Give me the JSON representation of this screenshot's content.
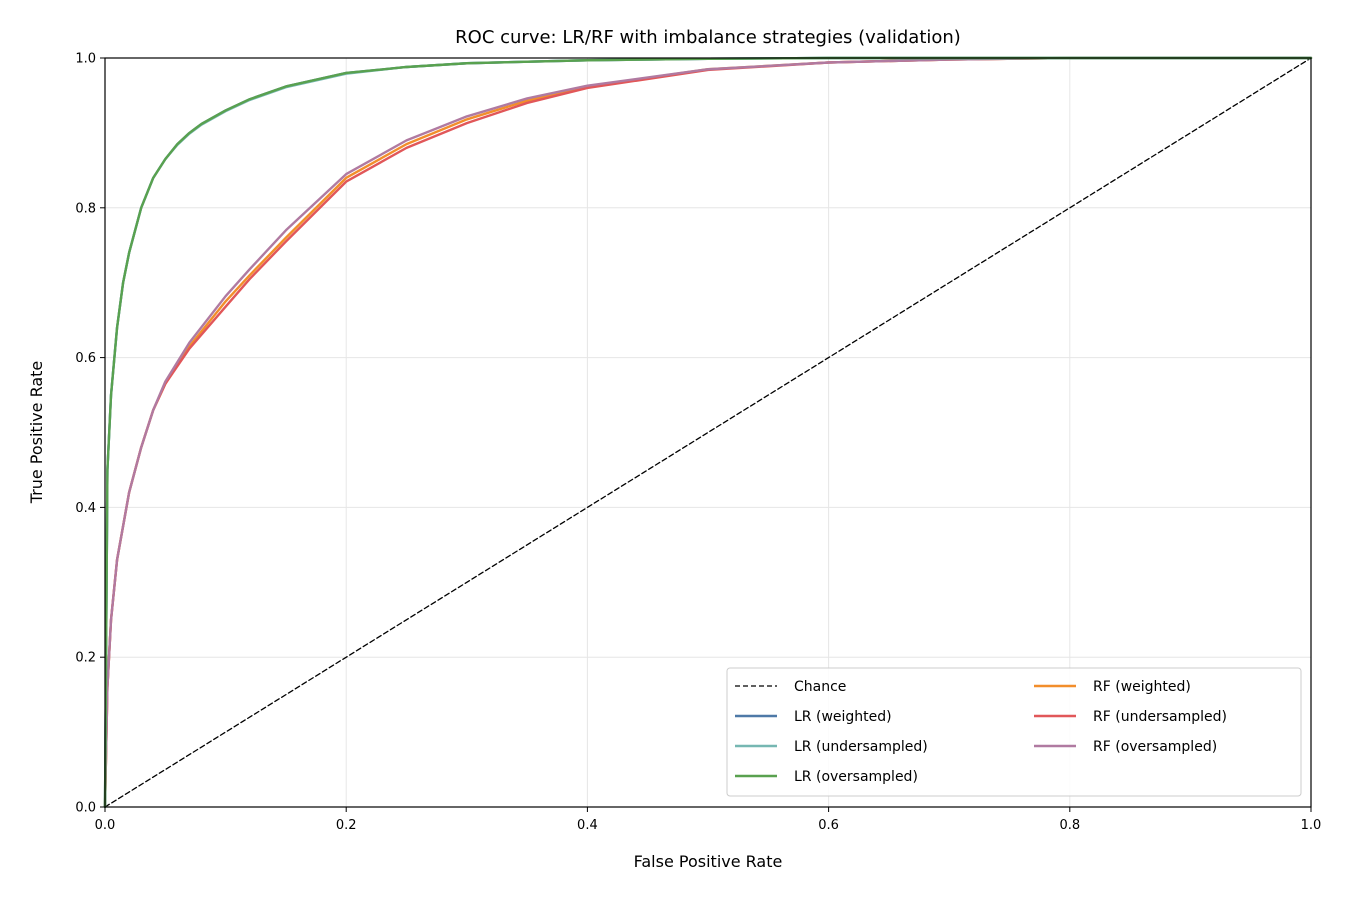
{
  "chart_data": {
    "type": "line",
    "title": "ROC curve: LR/RF with imbalance strategies (validation)",
    "xlabel": "False Positive Rate",
    "ylabel": "True Positive Rate",
    "xlim": [
      0,
      1
    ],
    "ylim": [
      0,
      1
    ],
    "xticks": [
      "0.0",
      "0.2",
      "0.4",
      "0.6",
      "0.8",
      "1.0"
    ],
    "yticks": [
      "0.0",
      "0.2",
      "0.4",
      "0.6",
      "0.8",
      "1.0"
    ],
    "grid": true,
    "legend_position": "lower-right",
    "series": [
      {
        "name": "Chance",
        "color": "#000000",
        "dashed": true,
        "x": [
          0,
          1
        ],
        "y": [
          0,
          1
        ]
      },
      {
        "name": "LR (weighted)",
        "color": "#4e79a7",
        "dashed": false,
        "x": [
          0,
          0.002,
          0.005,
          0.01,
          0.015,
          0.02,
          0.03,
          0.04,
          0.05,
          0.06,
          0.07,
          0.08,
          0.1,
          0.12,
          0.15,
          0.2,
          0.25,
          0.3,
          0.4,
          0.5,
          0.6,
          0.7,
          1.0
        ],
        "y": [
          0,
          0.45,
          0.55,
          0.64,
          0.7,
          0.74,
          0.8,
          0.84,
          0.865,
          0.885,
          0.9,
          0.912,
          0.93,
          0.945,
          0.962,
          0.98,
          0.988,
          0.993,
          0.997,
          0.999,
          1.0,
          1.0,
          1.0
        ]
      },
      {
        "name": "LR (undersampled)",
        "color": "#76b7b2",
        "dashed": false,
        "x": [
          0,
          0.002,
          0.005,
          0.01,
          0.015,
          0.02,
          0.03,
          0.04,
          0.05,
          0.06,
          0.07,
          0.08,
          0.1,
          0.12,
          0.15,
          0.2,
          0.25,
          0.3,
          0.4,
          0.5,
          0.6,
          0.7,
          1.0
        ],
        "y": [
          0,
          0.45,
          0.55,
          0.64,
          0.7,
          0.74,
          0.8,
          0.84,
          0.865,
          0.884,
          0.899,
          0.911,
          0.929,
          0.944,
          0.961,
          0.979,
          0.988,
          0.993,
          0.997,
          0.999,
          1.0,
          1.0,
          1.0
        ]
      },
      {
        "name": "LR (oversampled)",
        "color": "#59a14f",
        "dashed": false,
        "x": [
          0,
          0.002,
          0.005,
          0.01,
          0.015,
          0.02,
          0.03,
          0.04,
          0.05,
          0.06,
          0.07,
          0.08,
          0.1,
          0.12,
          0.15,
          0.2,
          0.25,
          0.3,
          0.4,
          0.5,
          0.6,
          0.7,
          1.0
        ],
        "y": [
          0,
          0.45,
          0.55,
          0.64,
          0.7,
          0.74,
          0.8,
          0.84,
          0.865,
          0.885,
          0.9,
          0.912,
          0.93,
          0.945,
          0.962,
          0.98,
          0.988,
          0.993,
          0.997,
          0.999,
          1.0,
          1.0,
          1.0
        ]
      },
      {
        "name": "RF (weighted)",
        "color": "#f28e2b",
        "dashed": false,
        "x": [
          0,
          0.002,
          0.005,
          0.01,
          0.02,
          0.03,
          0.04,
          0.05,
          0.07,
          0.1,
          0.12,
          0.15,
          0.2,
          0.25,
          0.3,
          0.35,
          0.4,
          0.5,
          0.6,
          0.7,
          0.8,
          1.0
        ],
        "y": [
          0,
          0.16,
          0.25,
          0.33,
          0.42,
          0.48,
          0.53,
          0.565,
          0.615,
          0.675,
          0.71,
          0.76,
          0.84,
          0.885,
          0.918,
          0.943,
          0.962,
          0.985,
          0.994,
          0.998,
          1.0,
          1.0
        ]
      },
      {
        "name": "RF (undersampled)",
        "color": "#e15759",
        "dashed": false,
        "x": [
          0,
          0.002,
          0.005,
          0.01,
          0.02,
          0.03,
          0.04,
          0.05,
          0.07,
          0.1,
          0.12,
          0.15,
          0.2,
          0.25,
          0.3,
          0.35,
          0.4,
          0.5,
          0.6,
          0.7,
          0.8,
          1.0
        ],
        "y": [
          0,
          0.16,
          0.25,
          0.33,
          0.42,
          0.48,
          0.53,
          0.565,
          0.612,
          0.668,
          0.705,
          0.755,
          0.835,
          0.88,
          0.913,
          0.94,
          0.96,
          0.984,
          0.994,
          0.998,
          1.0,
          1.0
        ]
      },
      {
        "name": "RF (oversampled)",
        "color": "#b07aa1",
        "dashed": false,
        "x": [
          0,
          0.002,
          0.005,
          0.01,
          0.02,
          0.03,
          0.04,
          0.05,
          0.07,
          0.1,
          0.12,
          0.15,
          0.2,
          0.25,
          0.3,
          0.35,
          0.4,
          0.5,
          0.6,
          0.7,
          0.8,
          1.0
        ],
        "y": [
          0,
          0.16,
          0.25,
          0.33,
          0.42,
          0.48,
          0.53,
          0.568,
          0.62,
          0.682,
          0.718,
          0.77,
          0.845,
          0.89,
          0.922,
          0.946,
          0.963,
          0.985,
          0.994,
          0.998,
          1.0,
          1.0
        ]
      }
    ]
  }
}
